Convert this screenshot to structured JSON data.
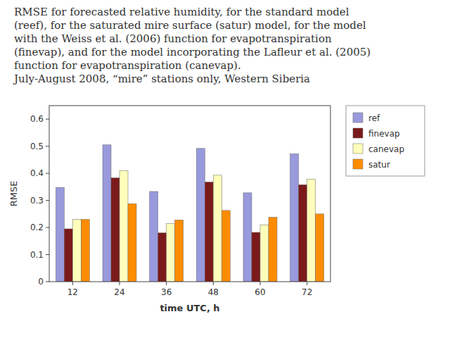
{
  "chart_data": {
    "type": "bar",
    "title": "RMSE for forecasted relative humidity, for the standard model\n(reef), for the saturated mire surface (satur) model, for the model\nwith the Weiss et al. (2006) function for evapotranspiration\n(finevap), and for the model incorporating the Lafleur et al. (2005)\nfunction for evapotranspiration (canevap).\nJuly-August 2008, “mire” stations only, Western Siberia",
    "x_label": "time UTC, h",
    "y_label": "RMSE",
    "categories": [
      "12",
      "24",
      "36",
      "48",
      "60",
      "72"
    ],
    "series": [
      {
        "name": "ref",
        "color": "#9999DD",
        "values": [
          0.348,
          0.505,
          0.333,
          0.492,
          0.328,
          0.472
        ]
      },
      {
        "name": "finevap",
        "color": "#7B1A1A",
        "values": [
          0.195,
          0.383,
          0.18,
          0.368,
          0.182,
          0.358
        ]
      },
      {
        "name": "canevap",
        "color": "#FFFFBB",
        "values": [
          0.23,
          0.41,
          0.215,
          0.393,
          0.21,
          0.378
        ]
      },
      {
        "name": "satur",
        "color": "#FF8C00",
        "values": [
          0.23,
          0.288,
          0.228,
          0.263,
          0.238,
          0.25
        ]
      }
    ],
    "ylim": [
      0,
      0.65
    ],
    "yticks": [
      0,
      0.1,
      0.2,
      0.3,
      0.4,
      0.5,
      0.6
    ],
    "grid": false,
    "legend": "right"
  }
}
